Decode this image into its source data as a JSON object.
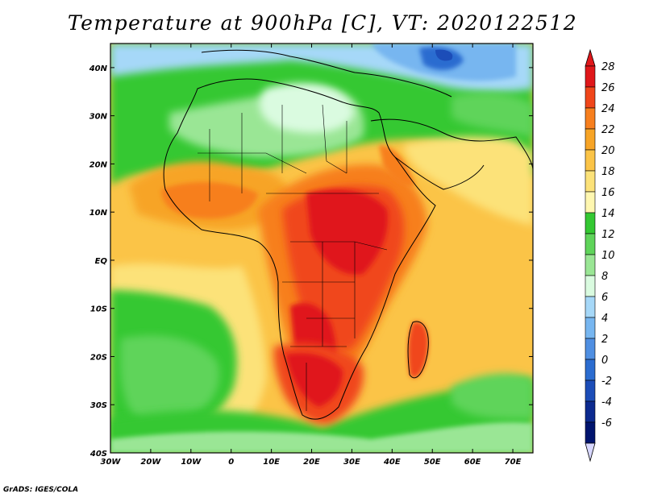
{
  "title": "Temperature at 900hPa [C], VT: 2020122512",
  "credit": "GrADS: IGES/COLA",
  "map": {
    "lon_range": [
      -30,
      75
    ],
    "lat_range": [
      -40,
      45
    ],
    "lon_ticks": [
      "30W",
      "20W",
      "10W",
      "0",
      "10E",
      "20E",
      "30E",
      "40E",
      "50E",
      "60E",
      "70E"
    ],
    "lat_ticks": [
      "40S",
      "30S",
      "20S",
      "10S",
      "EQ",
      "10N",
      "20N",
      "30N",
      "40N"
    ]
  },
  "colorbar": {
    "levels": [
      "28",
      "26",
      "24",
      "22",
      "20",
      "18",
      "16",
      "14",
      "12",
      "10",
      "8",
      "6",
      "4",
      "2",
      "0",
      "-2",
      "-4",
      "-6"
    ],
    "colors": [
      "#e0171a",
      "#f0461a",
      "#f77f1e",
      "#f7a426",
      "#fbc447",
      "#fce279",
      "#fff7b0",
      "#34c832",
      "#5fd45a",
      "#9ae695",
      "#dafbe0",
      "#a6d8f8",
      "#77b6f0",
      "#4f8fe2",
      "#2b6cd0",
      "#1c4db8",
      "#0c2a8f",
      "#00146e"
    ],
    "cap_top_color": "#e0171a",
    "cap_bottom_color": "#d7d7ff"
  }
}
